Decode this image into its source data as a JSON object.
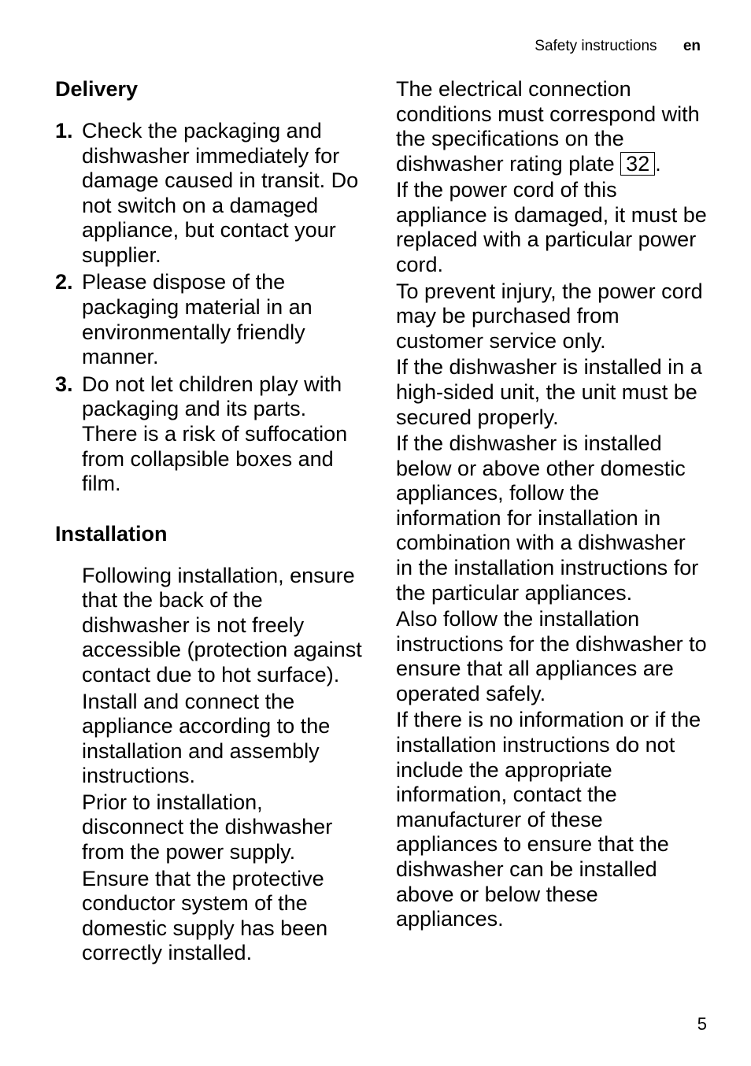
{
  "header": {
    "light": "Safety instructions",
    "bold": "en"
  },
  "left": {
    "section1_title": "Delivery",
    "list": [
      {
        "num": "1.",
        "text": "Check the packaging and dishwasher immediately for damage caused in transit. Do not switch on a damaged appliance, but contact your supplier."
      },
      {
        "num": "2.",
        "text": "Please dispose of the packaging material in an environmentally friendly manner."
      },
      {
        "num": "3.",
        "text": "Do not let children play with packaging and its parts. There is a risk of suffocation from collapsible boxes and film."
      }
    ],
    "section2_title": "Installation",
    "paragraphs": [
      "Following installation, ensure that the back of the dishwasher is not freely accessible (protection against contact due to hot surface).",
      "Install and connect the appliance according to the installation and assembly instructions.",
      "Prior to installation, disconnect the dishwasher from the power supply.",
      "Ensure that the protective conductor system of the domestic supply has been correctly installed."
    ]
  },
  "right": {
    "p1_pre": "The electrical connection conditions must correspond with the specifications on the dishwasher rating plate ",
    "p1_box": "32",
    "p1_post": ".",
    "paragraphs": [
      "If the power cord of this appliance is damaged, it must be replaced with a particular power cord.",
      "To prevent injury, the power cord may be purchased from customer service only.",
      "If the dishwasher is installed in a high-sided unit, the unit must be secured properly.",
      "If the dishwasher is installed below or above other domestic appliances, follow the information for installation in combination with a dishwasher in the installation instructions for the particular appliances.",
      "Also follow the installation instructions for the dishwasher to ensure that all appliances are operated safely.",
      "If there is no information or if the installation instructions do not include the appropriate information, contact the manufacturer of these appliances to ensure that the dishwasher can be installed above or below these appliances."
    ]
  },
  "page_number": "5"
}
